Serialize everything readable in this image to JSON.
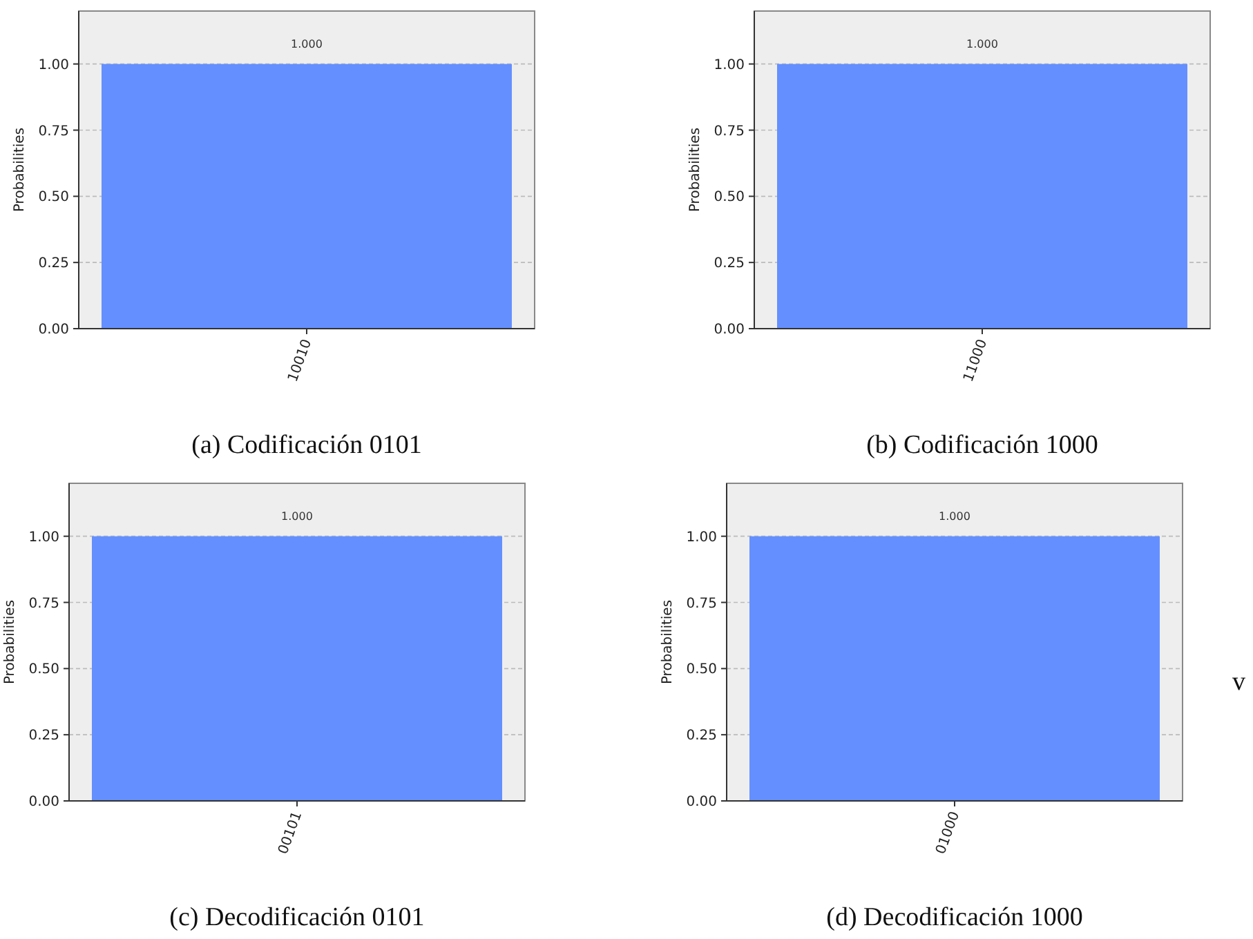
{
  "chart_data": [
    {
      "type": "bar",
      "title": "(a) Codificación 0101",
      "ylabel": "Probabilities",
      "categories": [
        "10010"
      ],
      "values": [
        1
      ],
      "value_labels": [
        "1.000"
      ],
      "color": "#648fff",
      "ylim": [
        0,
        1.2
      ],
      "yticks": [
        {
          "value": 0,
          "label": "0.00"
        },
        {
          "value": 0.25,
          "label": "0.25"
        },
        {
          "value": 0.5,
          "label": "0.50"
        },
        {
          "value": 0.75,
          "label": "0.75"
        },
        {
          "value": 1,
          "label": "1.00"
        }
      ],
      "grid": "y"
    },
    {
      "type": "bar",
      "title": "(b) Codificación 1000",
      "ylabel": "Probabilities",
      "categories": [
        "11000"
      ],
      "values": [
        1
      ],
      "value_labels": [
        "1.000"
      ],
      "color": "#648fff",
      "ylim": [
        0,
        1.2
      ],
      "yticks": [
        {
          "value": 0,
          "label": "0.00"
        },
        {
          "value": 0.25,
          "label": "0.25"
        },
        {
          "value": 0.5,
          "label": "0.50"
        },
        {
          "value": 0.75,
          "label": "0.75"
        },
        {
          "value": 1,
          "label": "1.00"
        }
      ],
      "grid": "y"
    },
    {
      "type": "bar",
      "title": "(c) Decodificación 0101",
      "ylabel": "Probabilities",
      "categories": [
        "00101"
      ],
      "values": [
        1
      ],
      "value_labels": [
        "1.000"
      ],
      "color": "#648fff",
      "ylim": [
        0,
        1.2
      ],
      "yticks": [
        {
          "value": 0,
          "label": "0.00"
        },
        {
          "value": 0.25,
          "label": "0.25"
        },
        {
          "value": 0.5,
          "label": "0.50"
        },
        {
          "value": 0.75,
          "label": "0.75"
        },
        {
          "value": 1,
          "label": "1.00"
        }
      ],
      "grid": "y"
    },
    {
      "type": "bar",
      "title": "(d) Decodificación 1000",
      "ylabel": "Probabilities",
      "categories": [
        "01000"
      ],
      "values": [
        1
      ],
      "value_labels": [
        "1.000"
      ],
      "color": "#648fff",
      "ylim": [
        0,
        1.2
      ],
      "yticks": [
        {
          "value": 0,
          "label": "0.00"
        },
        {
          "value": 0.25,
          "label": "0.25"
        },
        {
          "value": 0.5,
          "label": "0.50"
        },
        {
          "value": 0.75,
          "label": "0.75"
        },
        {
          "value": 1,
          "label": "1.00"
        }
      ],
      "grid": "y",
      "annotations": [
        "v"
      ]
    }
  ]
}
